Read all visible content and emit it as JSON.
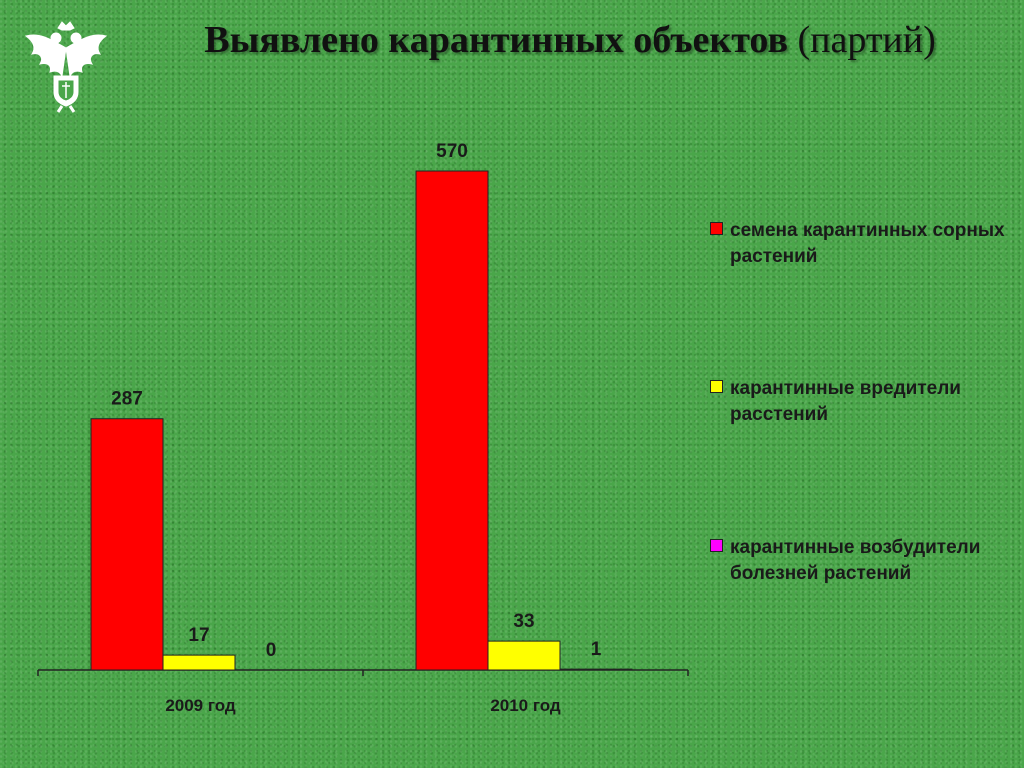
{
  "title": {
    "main": "Выявлено карантинных объектов",
    "sub": "(партий)"
  },
  "emblem": {
    "name": "double-headed-eagle-emblem-icon"
  },
  "colors": {
    "background": "#4aa64a",
    "series": [
      "#ff0000",
      "#ffff00",
      "#ff00ff"
    ]
  },
  "chart_data": {
    "type": "bar",
    "categories": [
      "2009 год",
      "2010 год"
    ],
    "series": [
      {
        "name": "семена карантинных сорных растений",
        "values": [
          287,
          570
        ]
      },
      {
        "name": "карантинные вредители расстений",
        "values": [
          17,
          33
        ]
      },
      {
        "name": "карантинные возбудители болезней растений",
        "values": [
          0,
          1
        ]
      }
    ],
    "title": "Выявлено карантинных объектов (партий)",
    "xlabel": "",
    "ylabel": "",
    "ylim": [
      0,
      600
    ],
    "grid": false,
    "legend": "right",
    "data_labels": true
  }
}
